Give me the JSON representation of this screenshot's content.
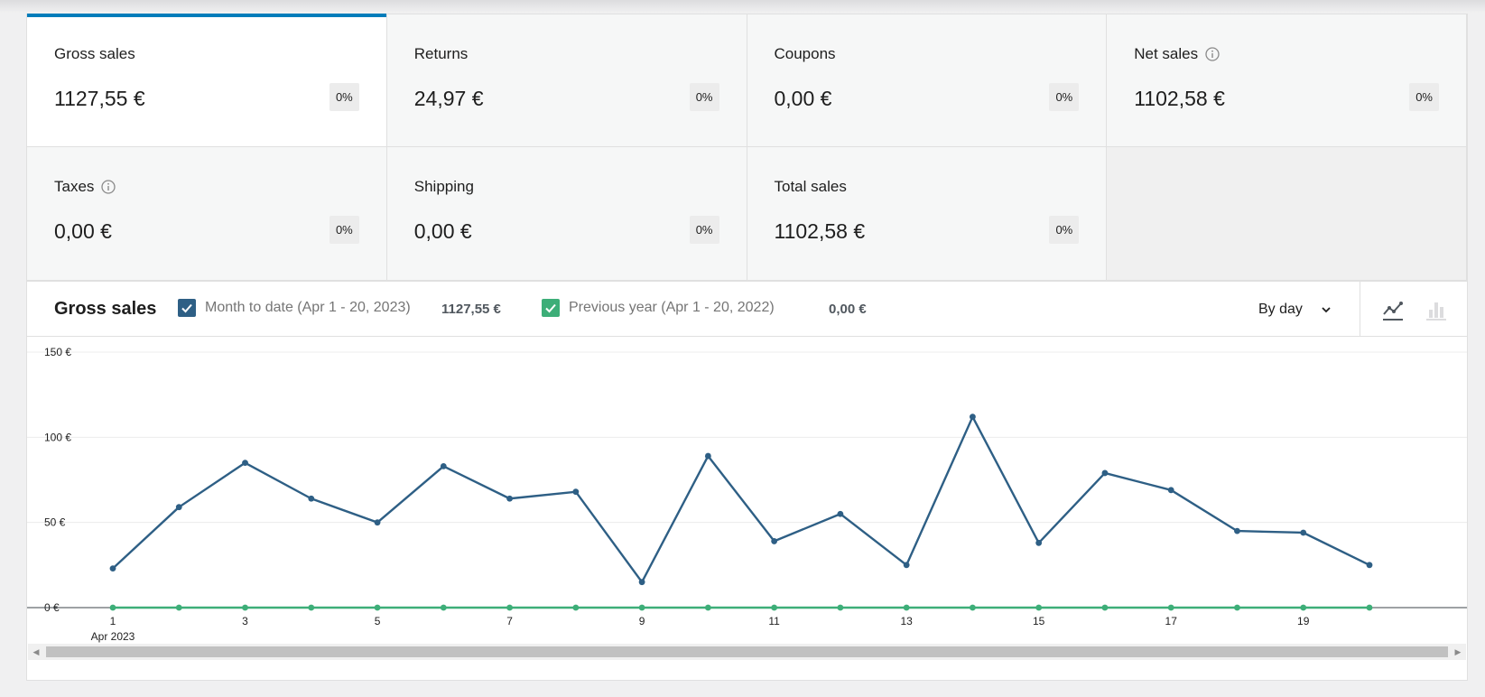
{
  "tiles": [
    {
      "label": "Gross sales",
      "value": "1127,55 €",
      "delta": "0%",
      "info": false,
      "selected": true
    },
    {
      "label": "Returns",
      "value": "24,97 €",
      "delta": "0%",
      "info": false,
      "selected": false
    },
    {
      "label": "Coupons",
      "value": "0,00 €",
      "delta": "0%",
      "info": false,
      "selected": false
    },
    {
      "label": "Net sales",
      "value": "1102,58 €",
      "delta": "0%",
      "info": true,
      "selected": false
    },
    {
      "label": "Taxes",
      "value": "0,00 €",
      "delta": "0%",
      "info": true,
      "selected": false
    },
    {
      "label": "Shipping",
      "value": "0,00 €",
      "delta": "0%",
      "info": false,
      "selected": false
    },
    {
      "label": "Total sales",
      "value": "1102,58 €",
      "delta": "0%",
      "info": false,
      "selected": false
    }
  ],
  "chart_header": {
    "title": "Gross sales",
    "legend": [
      {
        "label": "Month to date (Apr 1 - 20, 2023)",
        "total": "1127,55 €",
        "color": "#2e5f85",
        "checked": true
      },
      {
        "label": "Previous year (Apr 1 - 20, 2022)",
        "total": "0,00 €",
        "color": "#3dae78",
        "checked": true
      }
    ],
    "interval": "By day",
    "chart_types": [
      "line-chart-icon",
      "bar-chart-icon"
    ],
    "active_chart_type": "line"
  },
  "chart_data": {
    "type": "line",
    "x": [
      1,
      2,
      3,
      4,
      5,
      6,
      7,
      8,
      9,
      10,
      11,
      12,
      13,
      14,
      15,
      16,
      17,
      18,
      19,
      20
    ],
    "x_tick_labels": [
      "1",
      "3",
      "5",
      "7",
      "9",
      "11",
      "13",
      "15",
      "17",
      "19"
    ],
    "x_tick_values": [
      1,
      3,
      5,
      7,
      9,
      11,
      13,
      15,
      17,
      19
    ],
    "x_sublabel": "Apr 2023",
    "y_tick_labels": [
      "0 €",
      "50 €",
      "100 €",
      "150 €"
    ],
    "y_tick_values": [
      0,
      50,
      100,
      150
    ],
    "ylim": [
      0,
      150
    ],
    "grid": true,
    "series": [
      {
        "name": "Month to date (Apr 1 - 20, 2023)",
        "color": "#2e5f85",
        "values": [
          23,
          59,
          85,
          64,
          50,
          83,
          64,
          68,
          15,
          89,
          39,
          55,
          25,
          112,
          38,
          79,
          69,
          45,
          44,
          25
        ]
      },
      {
        "name": "Previous year (Apr 1 - 20, 2022)",
        "color": "#3dae78",
        "values": [
          0,
          0,
          0,
          0,
          0,
          0,
          0,
          0,
          0,
          0,
          0,
          0,
          0,
          0,
          0,
          0,
          0,
          0,
          0,
          0
        ]
      }
    ]
  }
}
